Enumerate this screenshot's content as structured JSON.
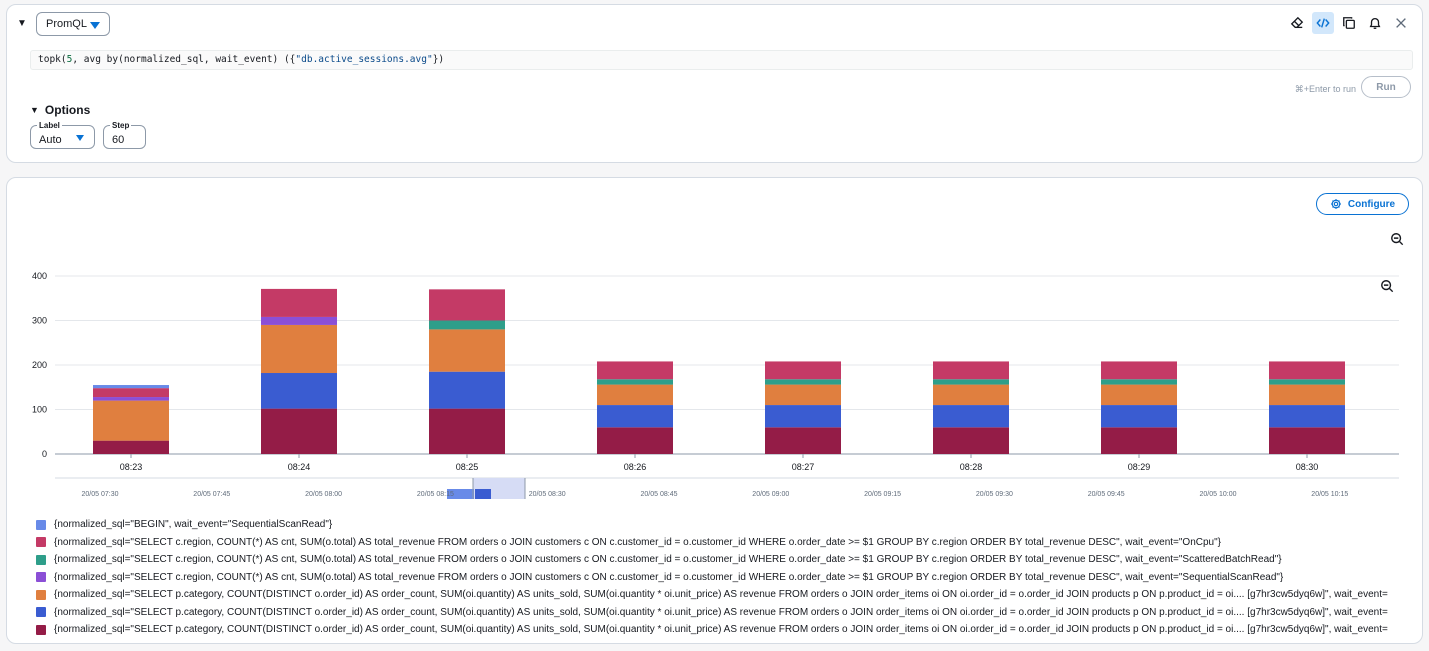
{
  "query_panel": {
    "language": "PromQL",
    "query": {
      "prefix": "topk(",
      "num": "5",
      "middle": ", avg by(normalized_sql, wait_event) ({",
      "str": "\"db.active_sessions.avg\"",
      "suffix": "})"
    },
    "run_hint": "⌘+Enter to run",
    "run_label": "Run",
    "options_label": "Options",
    "label_field": {
      "label": "Label",
      "value": "Auto"
    },
    "step_field": {
      "label": "Step",
      "value": "60"
    },
    "toolbar_icons": [
      "eraser-icon",
      "code-icon",
      "copy-icon",
      "bell-icon",
      "close-icon"
    ]
  },
  "chart_panel": {
    "configure_label": "Configure",
    "timeline_labels": [
      "20/05 07:30",
      "20/05 07:45",
      "20/05 08:00",
      "20/05 08:15",
      "20/05 08:30",
      "20/05 08:45",
      "20/05 09:00",
      "20/05 09:15",
      "20/05 09:30",
      "20/05 09:45",
      "20/05 10:00",
      "20/05 10:15"
    ],
    "brush_range": [
      "08:23",
      "08:30"
    ]
  },
  "chart_data": {
    "type": "bar",
    "stacked": true,
    "categories": [
      "08:23",
      "08:24",
      "08:25",
      "08:26",
      "08:27",
      "08:28",
      "08:29",
      "08:30"
    ],
    "ylim": [
      0,
      400
    ],
    "yticks": [
      0,
      100,
      200,
      300,
      400
    ],
    "grid": true,
    "legend_position": "bottom",
    "series": [
      {
        "name": "{normalized_sql=\"SELECT p.category, COUNT(DISTINCT o.order_id) AS order_count, SUM(oi.quantity) AS units_sold, SUM(oi.quantity * oi.unit_price) AS revenue FROM orders o JOIN order_items oi ON oi.order_id = o.order_id JOIN products p ON p.product_id = oi.... [g7hr3cw5dyq6w]\", wait_event=",
        "color": "#941c47",
        "values": [
          30,
          102,
          102,
          60,
          60,
          60,
          60,
          60
        ]
      },
      {
        "name": "{normalized_sql=\"SELECT p.category, COUNT(DISTINCT o.order_id) AS order_count, SUM(oi.quantity) AS units_sold, SUM(oi.quantity * oi.unit_price) AS revenue FROM orders o JOIN order_items oi ON oi.order_id = o.order_id JOIN products p ON p.product_id = oi.... [g7hr3cw5dyq6w]\", wait_event=",
        "color": "#3a5cd1",
        "values": [
          0,
          80,
          83,
          50,
          50,
          50,
          50,
          50
        ]
      },
      {
        "name": "{normalized_sql=\"SELECT p.category, COUNT(DISTINCT o.order_id) AS order_count, SUM(oi.quantity) AS units_sold, SUM(oi.quantity * oi.unit_price) AS revenue FROM orders o JOIN order_items oi ON oi.order_id = o.order_id JOIN products p ON p.product_id = oi.... [g7hr3cw5dyq6w]\", wait_event=",
        "color": "#e07f3f",
        "values": [
          90,
          108,
          95,
          46,
          46,
          46,
          46,
          46
        ]
      },
      {
        "name": "{normalized_sql=\"SELECT c.region, COUNT(*) AS cnt, SUM(o.total) AS total_revenue FROM orders o JOIN customers c ON c.customer_id = o.customer_id WHERE o.order_date >= $1 GROUP BY c.region ORDER BY total_revenue DESC\", wait_event=\"SequentialScanRead\"}",
        "color": "#8b4fd6",
        "values": [
          8,
          18,
          0,
          0,
          0,
          0,
          0,
          0
        ]
      },
      {
        "name": "{normalized_sql=\"SELECT c.region, COUNT(*) AS cnt, SUM(o.total) AS total_revenue FROM orders o JOIN customers c ON c.customer_id = o.customer_id WHERE o.order_date >= $1 GROUP BY c.region ORDER BY total_revenue DESC\", wait_event=\"ScatteredBatchRead\"}",
        "color": "#2e9e8a",
        "values": [
          0,
          0,
          20,
          12,
          12,
          12,
          12,
          12
        ]
      },
      {
        "name": "{normalized_sql=\"SELECT c.region, COUNT(*) AS cnt, SUM(o.total) AS total_revenue FROM orders o JOIN customers c ON c.customer_id = o.customer_id WHERE o.order_date >= $1 GROUP BY c.region ORDER BY total_revenue DESC\", wait_event=\"OnCpu\"}",
        "color": "#c43a66",
        "values": [
          20,
          63,
          70,
          40,
          40,
          40,
          40,
          40
        ]
      },
      {
        "name": "{normalized_sql=\"BEGIN\", wait_event=\"SequentialScanRead\"}",
        "color": "#688ae8",
        "values": [
          7,
          0,
          0,
          0,
          0,
          0,
          0,
          0
        ]
      }
    ]
  }
}
